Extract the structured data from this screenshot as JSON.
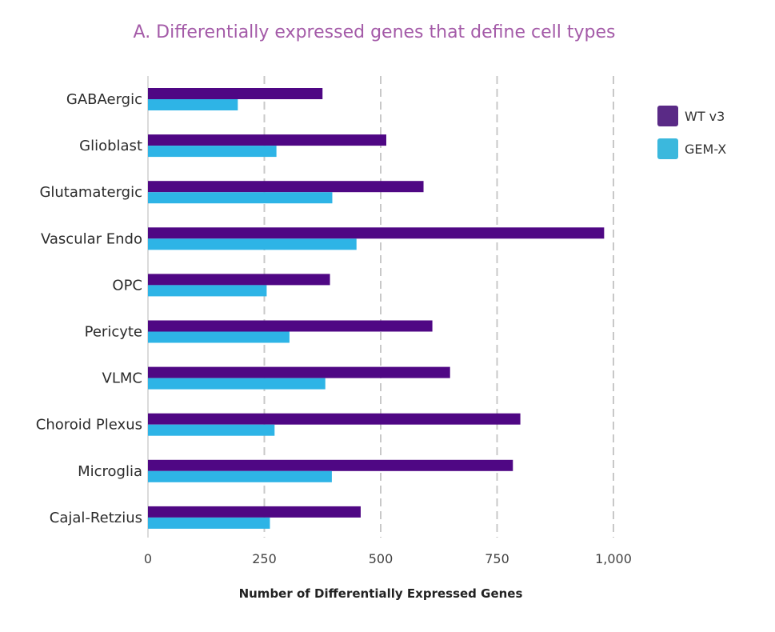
{
  "chart_data": {
    "type": "bar",
    "orientation": "horizontal",
    "title": "A. Differentially expressed genes that define cell types",
    "xlabel": "Number of Differentially Expressed Genes",
    "ylabel": "",
    "xlim": [
      0,
      1000
    ],
    "xticks": [
      0,
      250,
      500,
      750,
      1000
    ],
    "xtick_labels": [
      "0",
      "250",
      "500",
      "750",
      "1,000"
    ],
    "grid": "vertical dashed",
    "legend_position": "right",
    "categories": [
      "GABAergic",
      "Glioblast",
      "Glutamatergic",
      "Vascular Endo",
      "OPC",
      "Pericyte",
      "VLMC",
      "Choroid Plexus",
      "Microglia",
      "Cajal-Retzius"
    ],
    "series": [
      {
        "name": "WT v3",
        "color": "#4f0784",
        "values": [
          375,
          512,
          592,
          980,
          391,
          611,
          649,
          800,
          784,
          457
        ]
      },
      {
        "name": "GEM-X",
        "color": "#2eb4e6",
        "values": [
          193,
          276,
          396,
          448,
          255,
          304,
          381,
          272,
          395,
          262
        ]
      }
    ],
    "legend_swatch_colors": [
      "#5a2a86",
      "#3bb8dd"
    ]
  }
}
